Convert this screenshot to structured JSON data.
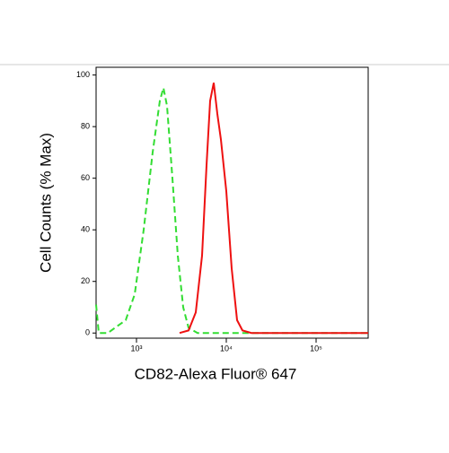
{
  "chart_data": {
    "type": "line",
    "xscale": "log",
    "xlabel": "CD82-Alexa Fluor® 647",
    "ylabel": "Cell Counts (% Max)",
    "xlim": [
      355,
      380000
    ],
    "ylim": [
      -2,
      103
    ],
    "xticks": [
      {
        "value": 1000,
        "label": "10³"
      },
      {
        "value": 10000,
        "label": "10⁴"
      },
      {
        "value": 100000,
        "label": "10⁵"
      }
    ],
    "yticks": [
      0,
      20,
      40,
      60,
      80,
      100
    ],
    "series": [
      {
        "color": "#33dd33",
        "dash": true,
        "x": [
          355,
          380,
          479,
          759,
          955,
          1202,
          1514,
          1820,
          1995,
          2188,
          2512,
          2884,
          3311,
          3802,
          4786,
          380000
        ],
        "values": [
          11,
          0,
          0,
          5,
          15,
          40,
          70,
          90,
          95,
          88,
          60,
          30,
          10,
          2,
          0,
          0
        ]
      },
      {
        "color": "#ee1111",
        "dash": false,
        "x": [
          3020,
          3802,
          4571,
          5370,
          6026,
          6607,
          7244,
          7943,
          8710,
          10000,
          11482,
          13183,
          15136,
          19055,
          380000
        ],
        "values": [
          0,
          1,
          8,
          30,
          65,
          90,
          97,
          85,
          75,
          55,
          25,
          5,
          1,
          0,
          0
        ]
      }
    ]
  }
}
